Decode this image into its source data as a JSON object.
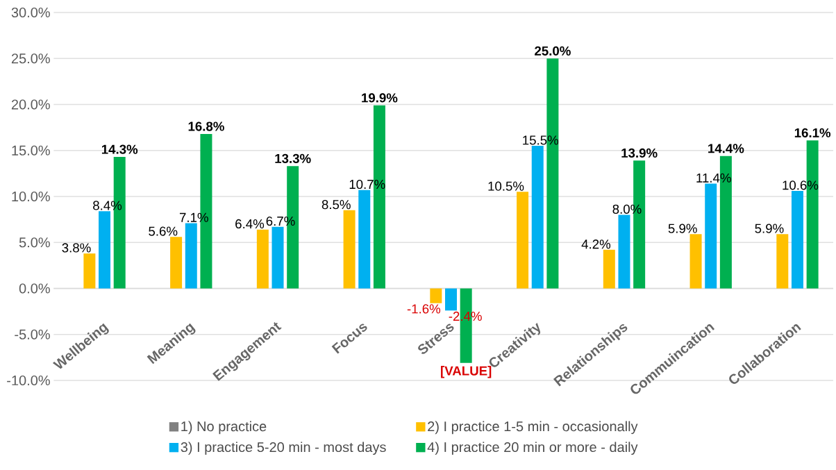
{
  "chart_data": {
    "type": "bar",
    "categories": [
      "Wellbeing",
      "Meaning",
      "Engagement",
      "Focus",
      "Stress",
      "Creativity",
      "Relationships",
      "Commuincation",
      "Collaboration"
    ],
    "series": [
      {
        "name": "1) No practice",
        "color": "#808080",
        "values": [
          0,
          0,
          0,
          0,
          0,
          0,
          0,
          0,
          0
        ],
        "value_labels": [
          null,
          null,
          null,
          null,
          null,
          null,
          null,
          null,
          null
        ]
      },
      {
        "name": "2) I practice 1-5 min - occasionally",
        "color": "#ffc000",
        "values": [
          3.8,
          5.6,
          6.4,
          8.5,
          -1.6,
          10.5,
          4.2,
          5.9,
          5.9
        ],
        "value_labels": [
          "3.8%",
          "5.6%",
          "6.4%",
          "8.5%",
          "-1.6%",
          "10.5%",
          "4.2%",
          "5.9%",
          "5.9%"
        ]
      },
      {
        "name": "3) I practice 5-20 min - most days",
        "color": "#00b0f0",
        "values": [
          8.4,
          7.1,
          6.7,
          10.7,
          -2.4,
          15.5,
          8.0,
          11.4,
          10.6
        ],
        "value_labels": [
          "8.4%",
          "7.1%",
          "6.7%",
          "10.7%",
          "-2.4%",
          "15.5%",
          "8.0%",
          "11.4%",
          "10.6%"
        ]
      },
      {
        "name": "4) I practice 20 min or more - daily",
        "color": "#00b050",
        "values": [
          14.3,
          16.8,
          13.3,
          19.9,
          -8.1,
          25.0,
          13.9,
          14.4,
          16.1
        ],
        "value_labels": [
          "14.3%",
          "16.8%",
          "13.3%",
          "19.9%",
          "[VALUE]",
          "25.0%",
          "13.9%",
          "14.4%",
          "16.1%"
        ]
      }
    ],
    "ylim": [
      -10,
      30
    ],
    "yticks": [
      {
        "value": -10,
        "label": "-10.0%"
      },
      {
        "value": -5,
        "label": "-5.0%"
      },
      {
        "value": 0,
        "label": "0.0%"
      },
      {
        "value": 5,
        "label": "5.0%"
      },
      {
        "value": 10,
        "label": "10.0%"
      },
      {
        "value": 15,
        "label": "15.0%"
      },
      {
        "value": 20,
        "label": "20.0%"
      },
      {
        "value": 25,
        "label": "25.0%"
      },
      {
        "value": 30,
        "label": "30.0%"
      }
    ],
    "grid": "y",
    "legend": "bottom"
  }
}
